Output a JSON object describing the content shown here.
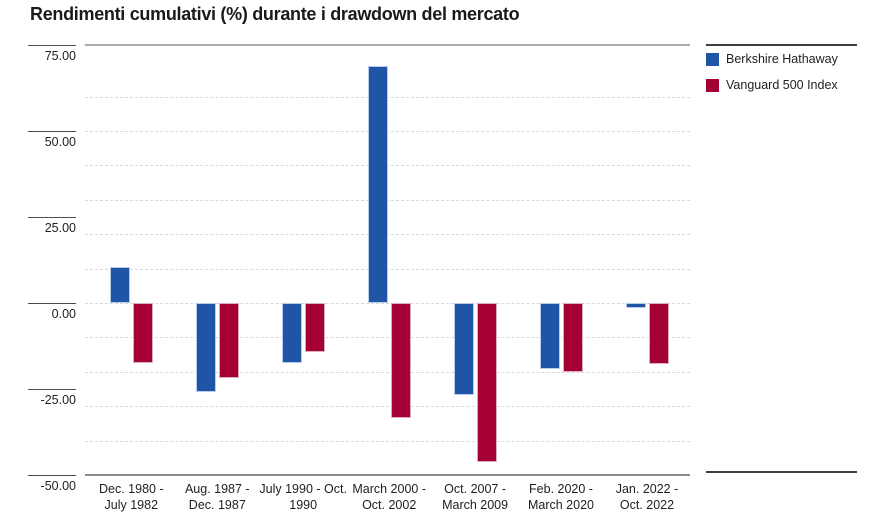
{
  "title": "Rendimenti cumulativi (%) durante i drawdown del mercato",
  "legend": {
    "position": "top-right",
    "items": [
      {
        "label": "Berkshire Hathaway",
        "color": "#2054A6"
      },
      {
        "label": "Vanguard 500 Index",
        "color": "#A50034"
      }
    ]
  },
  "chart_data": {
    "type": "bar",
    "title": "Rendimenti cumulativi (%) durante i drawdown del mercato",
    "xlabel": "",
    "ylabel": "",
    "ylim": [
      -50,
      75
    ],
    "legend_position": "top-right",
    "grid": "horizontal dashed every 10 units",
    "gridline_values": [
      60,
      50,
      40,
      30,
      20,
      10,
      0,
      -10,
      -20,
      -30,
      -40
    ],
    "yticks": [
      75,
      50,
      25,
      0,
      -25,
      -50
    ],
    "ytick_labels": [
      "75.00",
      "50.00",
      "25.00",
      "0.00",
      "-25.00",
      "-50.00"
    ],
    "categories": [
      [
        "Dec. 1980 -",
        "July 1982"
      ],
      [
        "Aug. 1987 -",
        "Dec. 1987"
      ],
      [
        "July 1990 - Oct.",
        "1990"
      ],
      [
        "March 2000 -",
        "Oct. 2002"
      ],
      [
        "Oct. 2007 -",
        "March 2009"
      ],
      [
        "Feb. 2020 -",
        "March 2020"
      ],
      [
        "Jan. 2022 -",
        "Oct. 2022"
      ]
    ],
    "series": [
      {
        "name": "Berkshire Hathaway",
        "color": "#2054A6",
        "border_color": "#b9cce9",
        "values": [
          10.4,
          -25.8,
          -17.4,
          68.8,
          -26.6,
          -19.1,
          -1.4
        ]
      },
      {
        "name": "Vanguard 500 Index",
        "color": "#A50034",
        "border_color": "#dcaec3",
        "values": [
          -17.3,
          -21.8,
          -14.2,
          -33.3,
          -46.1,
          -19.9,
          -17.6
        ]
      }
    ]
  }
}
